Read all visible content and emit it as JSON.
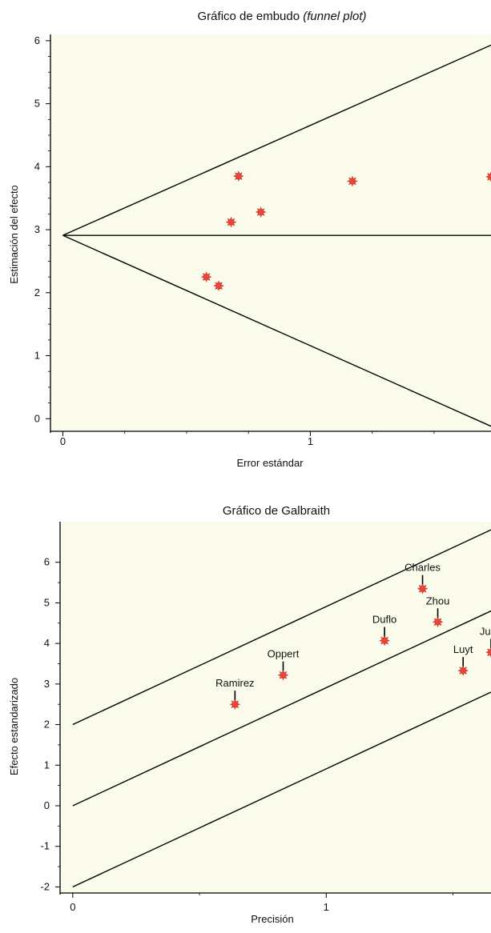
{
  "chart_data": [
    {
      "type": "scatter",
      "title": "Gráfico de embudo",
      "title_suffix": "(funnel plot)",
      "xlabel": "Error estándar",
      "ylabel": "Estimación del efecto",
      "xlim": [
        -0.05,
        1.73
      ],
      "ylim": [
        -0.2,
        6.1
      ],
      "x_ticks": [
        0,
        1
      ],
      "x_minor_ticks": [
        0.25,
        0.5,
        0.75,
        1.25,
        1.5
      ],
      "y_ticks": [
        0,
        1,
        2,
        3,
        4,
        5,
        6
      ],
      "y_minor_ticks": [
        0.25,
        0.5,
        0.75,
        1.25,
        1.5,
        1.75,
        2.25,
        2.5,
        2.75,
        3.25,
        3.5,
        3.75,
        4.25,
        4.5,
        4.75,
        5.25,
        5.5,
        5.75
      ],
      "points": [
        {
          "x": 0.58,
          "y": 2.25
        },
        {
          "x": 0.63,
          "y": 2.11
        },
        {
          "x": 0.68,
          "y": 3.12
        },
        {
          "x": 0.71,
          "y": 3.85
        },
        {
          "x": 0.8,
          "y": 3.28
        },
        {
          "x": 1.17,
          "y": 3.77
        },
        {
          "x": 1.73,
          "y": 3.84
        }
      ],
      "lines": [
        {
          "points": [
            [
              0,
              2.91
            ],
            [
              1.73,
              5.93
            ]
          ]
        },
        {
          "points": [
            [
              0,
              2.91
            ],
            [
              1.73,
              2.91
            ]
          ]
        },
        {
          "points": [
            [
              0,
              2.91
            ],
            [
              1.73,
              -0.12
            ]
          ]
        }
      ],
      "grid": false,
      "plot_background": "#fbfbeb",
      "marker_color": "#e8483c"
    },
    {
      "type": "scatter",
      "title": "Gráfico de Galbraith",
      "xlabel": "Precisión",
      "ylabel": "Efecto estandarizado",
      "xlim": [
        -0.05,
        1.65
      ],
      "ylim": [
        -2.15,
        7.0
      ],
      "x_ticks": [
        0,
        1
      ],
      "x_minor_ticks": [
        0.5,
        1.5
      ],
      "y_ticks": [
        -2,
        -1,
        0,
        1,
        2,
        3,
        4,
        5,
        6
      ],
      "y_minor_ticks": [
        -1.5,
        -0.5,
        0.5,
        1.5,
        2.5,
        3.5,
        4.5,
        5.5
      ],
      "points": [
        {
          "label": "Ramirez",
          "x": 0.64,
          "y": 2.5
        },
        {
          "label": "Oppert",
          "x": 0.83,
          "y": 3.22
        },
        {
          "label": "Duflo",
          "x": 1.23,
          "y": 4.07
        },
        {
          "label": "Charles",
          "x": 1.38,
          "y": 5.35
        },
        {
          "label": "Zhou",
          "x": 1.44,
          "y": 4.53
        },
        {
          "label": "Luyt",
          "x": 1.54,
          "y": 3.33
        },
        {
          "label": "Jung",
          "x": 1.65,
          "y": 3.78
        }
      ],
      "lines": [
        {
          "points": [
            [
              0,
              2
            ],
            [
              1.65,
              6.8
            ]
          ]
        },
        {
          "points": [
            [
              0,
              0
            ],
            [
              1.65,
              4.8
            ]
          ]
        },
        {
          "points": [
            [
              0,
              -2
            ],
            [
              1.65,
              2.8
            ]
          ]
        }
      ],
      "grid": false,
      "plot_background": "#fbfbeb",
      "marker_color": "#e8483c"
    }
  ]
}
